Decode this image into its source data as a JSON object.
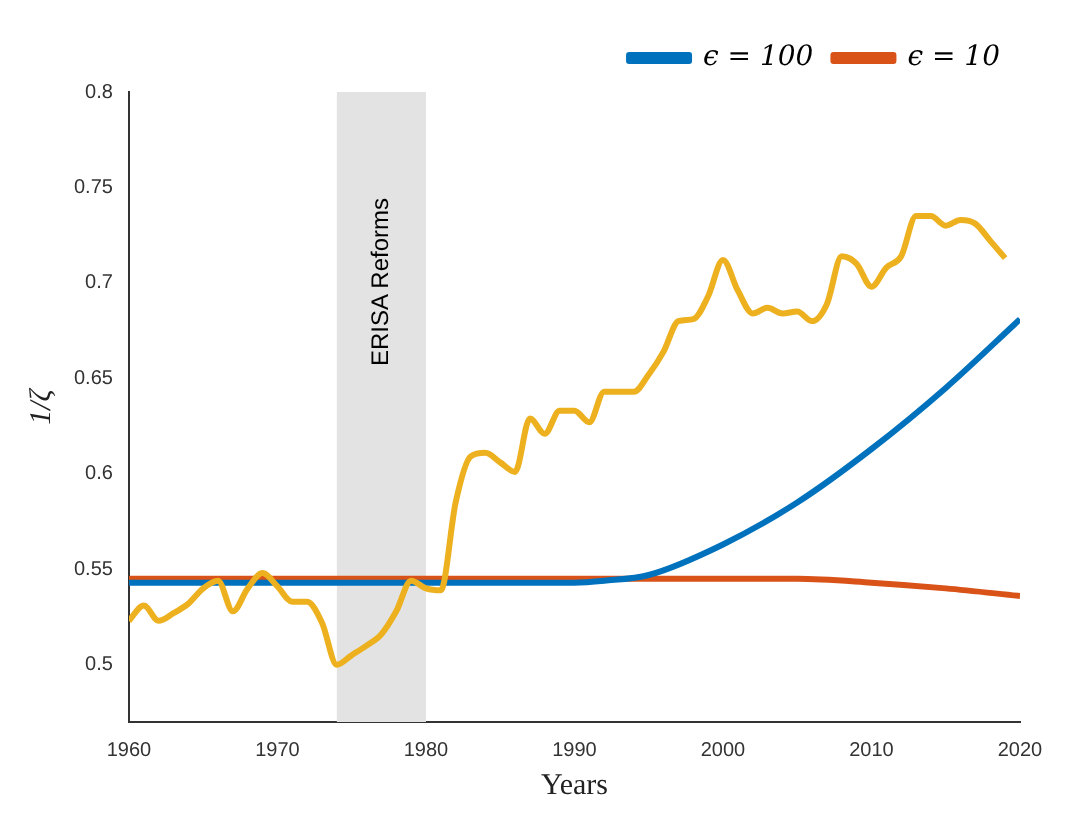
{
  "chart_data": {
    "type": "line",
    "xlabel": "Years",
    "ylabel": "1/ζ",
    "xlim": [
      1960,
      2020
    ],
    "xticks": [
      1960,
      1970,
      1980,
      1990,
      2000,
      2010,
      2020
    ],
    "ylim": [
      0.47,
      0.8
    ],
    "yticks": [
      0.5,
      0.55,
      0.6,
      0.65,
      0.7,
      0.75,
      0.8
    ],
    "grid": false,
    "legend": "top right",
    "marker": "none",
    "line_style": "solid",
    "bands": [
      {
        "axis": "x",
        "from": 1974,
        "to": 1980,
        "label": "ERISA Reforms",
        "color": "#e3e3e3"
      }
    ],
    "series": [
      {
        "color": "#edb120",
        "x": [
          1960,
          1961,
          1962,
          1963,
          1964,
          1965,
          1966,
          1967,
          1968,
          1969,
          1970,
          1971,
          1972,
          1973,
          1974,
          1975,
          1976,
          1977,
          1978,
          1979,
          1980,
          1981,
          1982,
          1983,
          1984,
          1985,
          1986,
          1987,
          1988,
          1989,
          1990,
          1991,
          1992,
          1993,
          1994,
          1995,
          1996,
          1997,
          1998,
          1999,
          2000,
          2001,
          2002,
          2003,
          2004,
          2005,
          2006,
          2007,
          2008,
          2009,
          2010,
          2011,
          2012,
          2013,
          2014,
          2015,
          2016,
          2017,
          2018,
          2019
        ],
        "values": [
          0.523,
          0.531,
          0.523,
          0.527,
          0.532,
          0.54,
          0.544,
          0.528,
          0.54,
          0.548,
          0.541,
          0.533,
          0.533,
          0.522,
          0.5,
          0.505,
          0.51,
          0.516,
          0.528,
          0.544,
          0.54,
          0.539,
          0.585,
          0.609,
          0.611,
          0.606,
          0.601,
          0.629,
          0.621,
          0.633,
          0.633,
          0.627,
          0.643,
          0.643,
          0.643,
          0.652,
          0.664,
          0.68,
          0.681,
          0.693,
          0.712,
          0.696,
          0.684,
          0.687,
          0.684,
          0.685,
          0.68,
          0.689,
          0.714,
          0.71,
          0.698,
          0.708,
          0.714,
          0.735,
          0.735,
          0.73,
          0.733,
          0.731,
          0.722,
          0.713
        ]
      },
      {
        "name": "ϵ = 100",
        "color": "#0072bd",
        "x": [
          1960,
          1970,
          1980,
          1990,
          1992,
          1995,
          2000,
          2005,
          2010,
          2015,
          2020
        ],
        "values": [
          0.543,
          0.543,
          0.543,
          0.543,
          0.544,
          0.547,
          0.563,
          0.585,
          0.613,
          0.645,
          0.681
        ]
      },
      {
        "name": "ϵ = 10",
        "color": "#d95319",
        "x": [
          1960,
          1970,
          1980,
          1990,
          2000,
          2005,
          2010,
          2015,
          2020
        ],
        "values": [
          0.545,
          0.545,
          0.545,
          0.545,
          0.545,
          0.545,
          0.543,
          0.54,
          0.536
        ]
      }
    ]
  }
}
